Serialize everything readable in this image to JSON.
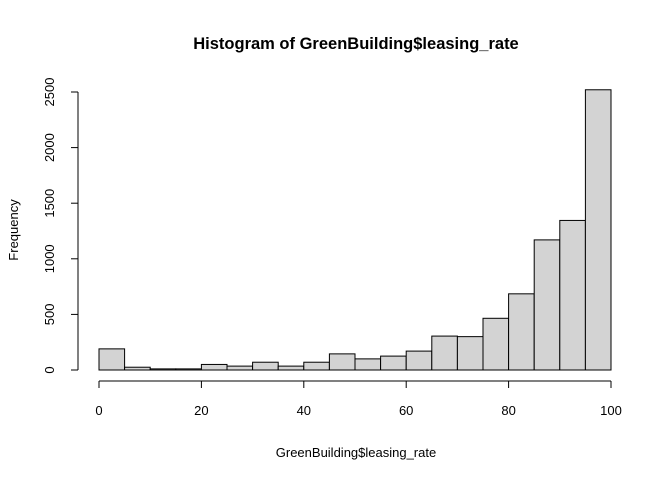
{
  "chart_data": {
    "type": "bar",
    "title": "Histogram of GreenBuilding$leasing_rate",
    "xlabel": "GreenBuilding$leasing_rate",
    "ylabel": "Frequency",
    "xlim": [
      0,
      100
    ],
    "ylim": [
      0,
      2500
    ],
    "x_ticks": [
      0,
      20,
      40,
      60,
      80,
      100
    ],
    "y_ticks": [
      0,
      500,
      1000,
      1500,
      2000,
      2500
    ],
    "bin_width": 5,
    "bins": [
      {
        "from": 0,
        "to": 5,
        "count": 190
      },
      {
        "from": 5,
        "to": 10,
        "count": 25
      },
      {
        "from": 10,
        "to": 15,
        "count": 10
      },
      {
        "from": 15,
        "to": 20,
        "count": 10
      },
      {
        "from": 20,
        "to": 25,
        "count": 50
      },
      {
        "from": 25,
        "to": 30,
        "count": 35
      },
      {
        "from": 30,
        "to": 35,
        "count": 70
      },
      {
        "from": 35,
        "to": 40,
        "count": 35
      },
      {
        "from": 40,
        "to": 45,
        "count": 70
      },
      {
        "from": 45,
        "to": 50,
        "count": 145
      },
      {
        "from": 50,
        "to": 55,
        "count": 100
      },
      {
        "from": 55,
        "to": 60,
        "count": 125
      },
      {
        "from": 60,
        "to": 65,
        "count": 170
      },
      {
        "from": 65,
        "to": 70,
        "count": 305
      },
      {
        "from": 70,
        "to": 75,
        "count": 300
      },
      {
        "from": 75,
        "to": 80,
        "count": 465
      },
      {
        "from": 80,
        "to": 85,
        "count": 685
      },
      {
        "from": 85,
        "to": 90,
        "count": 1170
      },
      {
        "from": 90,
        "to": 95,
        "count": 1345
      },
      {
        "from": 95,
        "to": 100,
        "count": 2520
      }
    ],
    "colors": {
      "bar_fill": "#d3d3d3",
      "bar_stroke": "#000000",
      "axis": "#000000",
      "text": "#000000"
    }
  }
}
